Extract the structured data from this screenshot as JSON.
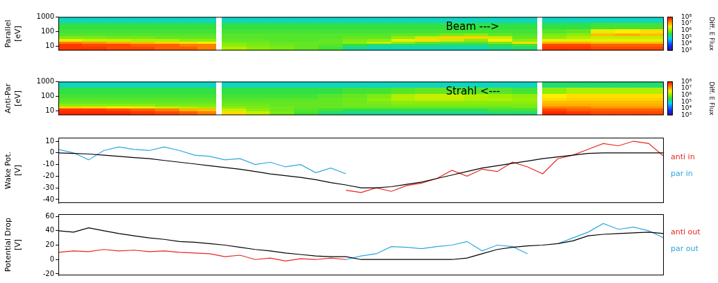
{
  "chart_data": [
    {
      "type": "heatmap",
      "y_label": "Parallel [eV]",
      "annotation": "Beam --->",
      "log": "y",
      "grid": false,
      "tick_labels": "y",
      "xlim": [
        0,
        100
      ],
      "ylim": [
        5,
        1000
      ],
      "yticks": [
        10,
        100,
        1000
      ],
      "x_edges": [
        0,
        4,
        8,
        12,
        16,
        20,
        23,
        26,
        27,
        31,
        35,
        39,
        43,
        47,
        51,
        55,
        59,
        63,
        67,
        71,
        75,
        79,
        80,
        84,
        88,
        92,
        96,
        100
      ],
      "y_edges": [
        5,
        10,
        15,
        22,
        32,
        50,
        80,
        150,
        400,
        1000
      ],
      "cells": [
        [
          50000000.0,
          50000000.0,
          20000000.0,
          3000000.0,
          800000.0,
          500000.0,
          400000.0,
          300000.0,
          100000.0
        ],
        [
          50000000.0,
          40000000.0,
          15000000.0,
          2000000.0,
          800000.0,
          500000.0,
          400000.0,
          300000.0,
          100000.0
        ],
        [
          40000000.0,
          40000000.0,
          10000000.0,
          2000000.0,
          700000.0,
          500000.0,
          400000.0,
          300000.0,
          100000.0
        ],
        [
          40000000.0,
          30000000.0,
          8000000.0,
          1500000.0,
          700000.0,
          500000.0,
          400000.0,
          300000.0,
          100000.0
        ],
        [
          30000000.0,
          30000000.0,
          6000000.0,
          1500000.0,
          600000.0,
          500000.0,
          400000.0,
          300000.0,
          100000.0
        ],
        [
          30000000.0,
          20000000.0,
          5000000.0,
          1000000.0,
          600000.0,
          500000.0,
          400000.0,
          300000.0,
          100000.0
        ],
        [
          20000000.0,
          20000000.0,
          4000000.0,
          1000000.0,
          600000.0,
          500000.0,
          400000.0,
          300000.0,
          100000.0
        ],
        null,
        [
          1500000.0,
          1000000.0,
          800000.0,
          600000.0,
          500000.0,
          500000.0,
          400000.0,
          300000.0,
          100000.0
        ],
        [
          1000000.0,
          800000.0,
          700000.0,
          600000.0,
          500000.0,
          500000.0,
          400000.0,
          300000.0,
          100000.0
        ],
        [
          800000.0,
          700000.0,
          600000.0,
          500000.0,
          500000.0,
          500000.0,
          400000.0,
          300000.0,
          100000.0
        ],
        [
          600000.0,
          600000.0,
          600000.0,
          500000.0,
          500000.0,
          500000.0,
          400000.0,
          300000.0,
          100000.0
        ],
        [
          400000.0,
          500000.0,
          600000.0,
          600000.0,
          500000.0,
          500000.0,
          400000.0,
          300000.0,
          100000.0
        ],
        [
          150000.0,
          300000.0,
          1000000.0,
          800000.0,
          600000.0,
          500000.0,
          400000.0,
          300000.0,
          100000.0
        ],
        [
          100000.0,
          200000.0,
          2000000.0,
          1000000.0,
          600000.0,
          500000.0,
          400000.0,
          300000.0,
          100000.0
        ],
        [
          100000.0,
          200000.0,
          1000000.0,
          3000000.0,
          1000000.0,
          600000.0,
          400000.0,
          300000.0,
          100000.0
        ],
        [
          100000.0,
          200000.0,
          600000.0,
          5000000.0,
          2000000.0,
          600000.0,
          400000.0,
          300000.0,
          100000.0
        ],
        [
          100000.0,
          200000.0,
          500000.0,
          2000000.0,
          6000000.0,
          800000.0,
          400000.0,
          300000.0,
          100000.0
        ],
        [
          100000.0,
          200000.0,
          500000.0,
          1000000.0,
          6000000.0,
          1000000.0,
          400000.0,
          300000.0,
          100000.0
        ],
        [
          150000.0,
          300000.0,
          800000.0,
          4000000.0,
          2000000.0,
          600000.0,
          400000.0,
          300000.0,
          100000.0
        ],
        [
          200000.0,
          400000.0,
          5000000.0,
          1000000.0,
          600000.0,
          500000.0,
          400000.0,
          300000.0,
          100000.0
        ],
        null,
        [
          50000000.0,
          40000000.0,
          10000000.0,
          3000000.0,
          1000000.0,
          800000.0,
          500000.0,
          300000.0,
          100000.0
        ],
        [
          50000000.0,
          40000000.0,
          10000000.0,
          3000000.0,
          1500000.0,
          1000000.0,
          600000.0,
          300000.0,
          100000.0
        ],
        [
          40000000.0,
          30000000.0,
          8000000.0,
          3000000.0,
          2000000.0,
          8000000.0,
          3000000.0,
          400000.0,
          100000.0
        ],
        [
          40000000.0,
          30000000.0,
          8000000.0,
          3000000.0,
          2000000.0,
          10000000.0,
          4000000.0,
          400000.0,
          100000.0
        ],
        [
          40000000.0,
          30000000.0,
          8000000.0,
          3000000.0,
          2000000.0,
          8000000.0,
          5000000.0,
          400000.0,
          100000.0
        ]
      ],
      "color_label": "Diff. E Flux",
      "color_range": [
        1000,
        100000000
      ],
      "color_ticks": [
        {
          "value": 1000,
          "label": "10³"
        },
        {
          "value": 10000,
          "label": "10⁴"
        },
        {
          "value": 100000,
          "label": "10⁵"
        },
        {
          "value": 1000000,
          "label": "10⁶"
        },
        {
          "value": 10000000,
          "label": "10⁷"
        },
        {
          "value": 100000000,
          "label": "10⁸"
        }
      ]
    },
    {
      "type": "heatmap",
      "y_label": "Anti-Par [eV]",
      "annotation": "Strahl <---",
      "log": "y",
      "grid": false,
      "tick_labels": "y",
      "xlim": [
        0,
        100
      ],
      "ylim": [
        5,
        1000
      ],
      "yticks": [
        10,
        100,
        1000
      ],
      "x_edges": [
        0,
        4,
        8,
        12,
        16,
        20,
        23,
        26,
        27,
        31,
        35,
        39,
        43,
        47,
        51,
        55,
        59,
        63,
        67,
        71,
        75,
        79,
        80,
        84,
        88,
        92,
        96,
        100
      ],
      "y_edges": [
        5,
        10,
        15,
        22,
        32,
        50,
        80,
        150,
        400,
        1000
      ],
      "cells": [
        [
          60000000.0,
          50000000.0,
          6000000.0,
          1000000.0,
          600000.0,
          500000.0,
          400000.0,
          300000.0,
          100000.0
        ],
        [
          60000000.0,
          50000000.0,
          5000000.0,
          1000000.0,
          600000.0,
          500000.0,
          400000.0,
          300000.0,
          100000.0
        ],
        [
          60000000.0,
          40000000.0,
          4000000.0,
          1000000.0,
          600000.0,
          500000.0,
          400000.0,
          300000.0,
          100000.0
        ],
        [
          50000000.0,
          30000000.0,
          3000000.0,
          1000000.0,
          600000.0,
          500000.0,
          400000.0,
          300000.0,
          100000.0
        ],
        [
          40000000.0,
          20000000.0,
          2000000.0,
          800000.0,
          600000.0,
          500000.0,
          400000.0,
          300000.0,
          100000.0
        ],
        [
          30000000.0,
          10000000.0,
          1500000.0,
          800000.0,
          600000.0,
          500000.0,
          400000.0,
          300000.0,
          100000.0
        ],
        [
          20000000.0,
          8000000.0,
          1200000.0,
          800000.0,
          600000.0,
          500000.0,
          400000.0,
          300000.0,
          100000.0
        ],
        null,
        [
          5000000.0,
          2000000.0,
          1000000.0,
          700000.0,
          600000.0,
          500000.0,
          400000.0,
          300000.0,
          100000.0
        ],
        [
          2000000.0,
          1000000.0,
          800000.0,
          700000.0,
          600000.0,
          500000.0,
          400000.0,
          300000.0,
          100000.0
        ],
        [
          800000.0,
          700000.0,
          700000.0,
          600000.0,
          600000.0,
          500000.0,
          400000.0,
          300000.0,
          100000.0
        ],
        [
          400000.0,
          500000.0,
          600000.0,
          600000.0,
          600000.0,
          500000.0,
          400000.0,
          300000.0,
          100000.0
        ],
        [
          200000.0,
          400000.0,
          600000.0,
          600000.0,
          600000.0,
          600000.0,
          500000.0,
          300000.0,
          100000.0
        ],
        [
          150000.0,
          300000.0,
          600000.0,
          700000.0,
          700000.0,
          700000.0,
          600000.0,
          400000.0,
          100000.0
        ],
        [
          150000.0,
          300000.0,
          600000.0,
          700000.0,
          800000.0,
          1000000.0,
          800000.0,
          400000.0,
          100000.0
        ],
        [
          150000.0,
          300000.0,
          600000.0,
          800000.0,
          1000000.0,
          1500000.0,
          1500000.0,
          500000.0,
          100000.0
        ],
        [
          150000.0,
          300000.0,
          600000.0,
          800000.0,
          1000000.0,
          2000000.0,
          2000000.0,
          600000.0,
          100000.0
        ],
        [
          150000.0,
          300000.0,
          600000.0,
          800000.0,
          1000000.0,
          2000000.0,
          2000000.0,
          600000.0,
          100000.0
        ],
        [
          150000.0,
          300000.0,
          600000.0,
          800000.0,
          1000000.0,
          1500000.0,
          1500000.0,
          500000.0,
          100000.0
        ],
        [
          200000.0,
          400000.0,
          600000.0,
          800000.0,
          1000000.0,
          1500000.0,
          1200000.0,
          500000.0,
          100000.0
        ],
        [
          200000.0,
          400000.0,
          700000.0,
          800000.0,
          1000000.0,
          1200000.0,
          1000000.0,
          400000.0,
          100000.0
        ],
        null,
        [
          60000000.0,
          40000000.0,
          20000000.0,
          10000000.0,
          8000000.0,
          5000000.0,
          4000000.0,
          1000000.0,
          200000.0
        ],
        [
          50000000.0,
          30000000.0,
          20000000.0,
          10000000.0,
          8000000.0,
          6000000.0,
          5000000.0,
          1500000.0,
          200000.0
        ],
        [
          40000000.0,
          30000000.0,
          15000000.0,
          10000000.0,
          8000000.0,
          6000000.0,
          5000000.0,
          1500000.0,
          200000.0
        ],
        [
          40000000.0,
          30000000.0,
          15000000.0,
          10000000.0,
          8000000.0,
          6000000.0,
          5000000.0,
          1500000.0,
          200000.0
        ],
        [
          40000000.0,
          30000000.0,
          15000000.0,
          10000000.0,
          8000000.0,
          6000000.0,
          5000000.0,
          1500000.0,
          200000.0
        ]
      ],
      "color_label": "Diff. E Flux",
      "color_range": [
        1000,
        100000000
      ],
      "color_ticks": [
        {
          "value": 1000,
          "label": "10³"
        },
        {
          "value": 10000,
          "label": "10⁴"
        },
        {
          "value": 100000,
          "label": "10⁵"
        },
        {
          "value": 1000000,
          "label": "10⁶"
        },
        {
          "value": 10000000,
          "label": "10⁷"
        },
        {
          "value": 100000000,
          "label": "10⁸"
        }
      ]
    },
    {
      "type": "line",
      "y_label": "Wake Pot. [V]",
      "grid": false,
      "tick_labels": "y",
      "legend": "right",
      "xlim": [
        0,
        100
      ],
      "ylim": [
        -43,
        13
      ],
      "yticks": [
        -40,
        -30,
        -20,
        -10,
        0,
        10
      ],
      "x": [
        0,
        2.5,
        5,
        7.5,
        10,
        12.5,
        15,
        17.5,
        20,
        22.5,
        25,
        27.5,
        30,
        32.5,
        35,
        37.5,
        40,
        42.5,
        45,
        47.5,
        50,
        52.5,
        55,
        57.5,
        60,
        62.5,
        65,
        67.5,
        70,
        72.5,
        75,
        77.5,
        80,
        82.5,
        85,
        87.5,
        90,
        92.5,
        95,
        97.5,
        100
      ],
      "series": [
        {
          "color": "#000000",
          "values": [
            0,
            -0.5,
            -1,
            -2,
            -3,
            -4,
            -5,
            -6.5,
            -8,
            -9.5,
            -11,
            -12.5,
            -14,
            -16,
            -18,
            -19.5,
            -21,
            -23,
            -25.5,
            -27.5,
            -30,
            -30,
            -29,
            -27,
            -25,
            -22,
            -19,
            -16,
            -13,
            -11,
            -9,
            -7,
            -5,
            -3.5,
            -2,
            -0.5,
            0,
            0,
            0,
            0,
            0
          ]
        },
        {
          "name": "anti in",
          "color": "#e8261c",
          "values": [
            null,
            null,
            null,
            null,
            null,
            null,
            null,
            null,
            null,
            null,
            null,
            null,
            null,
            null,
            null,
            null,
            null,
            null,
            null,
            -32,
            -34,
            -30,
            -33,
            -28,
            -26,
            -22,
            -15,
            -20,
            -14,
            -16,
            -8,
            -12,
            -18,
            -5,
            -2,
            3,
            8,
            6,
            10,
            8,
            -3
          ]
        },
        {
          "name": "par in",
          "color": "#2aa7e0",
          "values": [
            3,
            0,
            -6,
            2,
            5,
            3,
            2,
            5,
            2,
            -2,
            -3,
            -6,
            -5,
            -10,
            -8,
            -12,
            -10,
            -17,
            -13,
            -18,
            null,
            null,
            null,
            null,
            null,
            null,
            null,
            null,
            null,
            null,
            null,
            null,
            null,
            null,
            null,
            null,
            null,
            null,
            null,
            null,
            null
          ]
        }
      ]
    },
    {
      "type": "line",
      "y_label": "Potential Drop [V]",
      "grid": false,
      "tick_labels": "y",
      "legend": "right",
      "xlim": [
        0,
        100
      ],
      "ylim": [
        -22,
        63
      ],
      "yticks": [
        -20,
        0,
        20,
        40,
        60
      ],
      "x": [
        0,
        2.5,
        5,
        7.5,
        10,
        12.5,
        15,
        17.5,
        20,
        22.5,
        25,
        27.5,
        30,
        32.5,
        35,
        37.5,
        40,
        42.5,
        45,
        47.5,
        50,
        52.5,
        55,
        57.5,
        60,
        62.5,
        65,
        67.5,
        70,
        72.5,
        75,
        77.5,
        80,
        82.5,
        85,
        87.5,
        90,
        92.5,
        95,
        97.5,
        100
      ],
      "series": [
        {
          "color": "#000000",
          "values": [
            40,
            38,
            44,
            40,
            36,
            33,
            30,
            28,
            25,
            24,
            22,
            20,
            17,
            14,
            12,
            9,
            7,
            5,
            4,
            4,
            0,
            0,
            0,
            0,
            0,
            0,
            0,
            2,
            8,
            14,
            17,
            19,
            20,
            22,
            26,
            33,
            35,
            36,
            37,
            38,
            36
          ]
        },
        {
          "name": "anti out",
          "color": "#e8261c",
          "values": [
            10,
            12,
            11,
            14,
            12,
            13,
            11,
            12,
            10,
            9,
            8,
            4,
            6,
            0,
            2,
            -2,
            1,
            0,
            2,
            0,
            null,
            null,
            null,
            null,
            null,
            null,
            null,
            null,
            null,
            null,
            null,
            null,
            null,
            null,
            null,
            null,
            null,
            null,
            null,
            null,
            null
          ]
        },
        {
          "name": "par out",
          "color": "#2aa7e0",
          "values": [
            null,
            null,
            null,
            null,
            null,
            null,
            null,
            null,
            null,
            null,
            null,
            null,
            null,
            null,
            null,
            null,
            null,
            null,
            null,
            0,
            5,
            8,
            18,
            17,
            15,
            18,
            20,
            25,
            12,
            20,
            18,
            8,
            null,
            22,
            30,
            38,
            50,
            42,
            45,
            40,
            30
          ]
        }
      ]
    }
  ]
}
